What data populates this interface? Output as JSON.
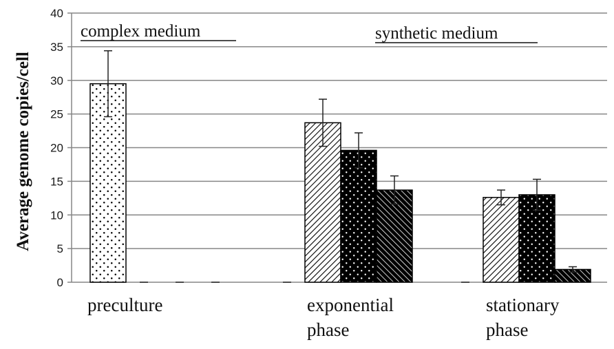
{
  "chart_data": {
    "type": "bar",
    "ylabel": "Average genome copies/cell",
    "ylim": [
      0,
      40
    ],
    "yticks": [
      0,
      5,
      10,
      15,
      20,
      25,
      30,
      35,
      40
    ],
    "grid": true,
    "annotations": [
      {
        "text": "complex medium",
        "underline": true
      },
      {
        "text": "synthetic medium",
        "underline": true
      }
    ],
    "categories": [
      [
        "preculture"
      ],
      [
        "exponential",
        "phase"
      ],
      [
        "stationary",
        "phase"
      ]
    ],
    "series": [
      {
        "pattern": "white-dots",
        "values": [
          29.5,
          0,
          0
        ],
        "errors": [
          4.9,
          0,
          0
        ]
      },
      {
        "pattern": "white-diagonal",
        "values": [
          0,
          23.7,
          12.6
        ],
        "errors": [
          0,
          3.5,
          1.1
        ]
      },
      {
        "pattern": "black-dots",
        "values": [
          0,
          19.6,
          13.0
        ],
        "errors": [
          0,
          2.6,
          2.3
        ]
      },
      {
        "pattern": "black-diagonal",
        "values": [
          0,
          13.7,
          1.9
        ],
        "errors": [
          0,
          2.1,
          0.4
        ]
      }
    ],
    "colors": {
      "axis": "#868686",
      "grid": "#868686",
      "bar_edge": "#000000"
    }
  }
}
